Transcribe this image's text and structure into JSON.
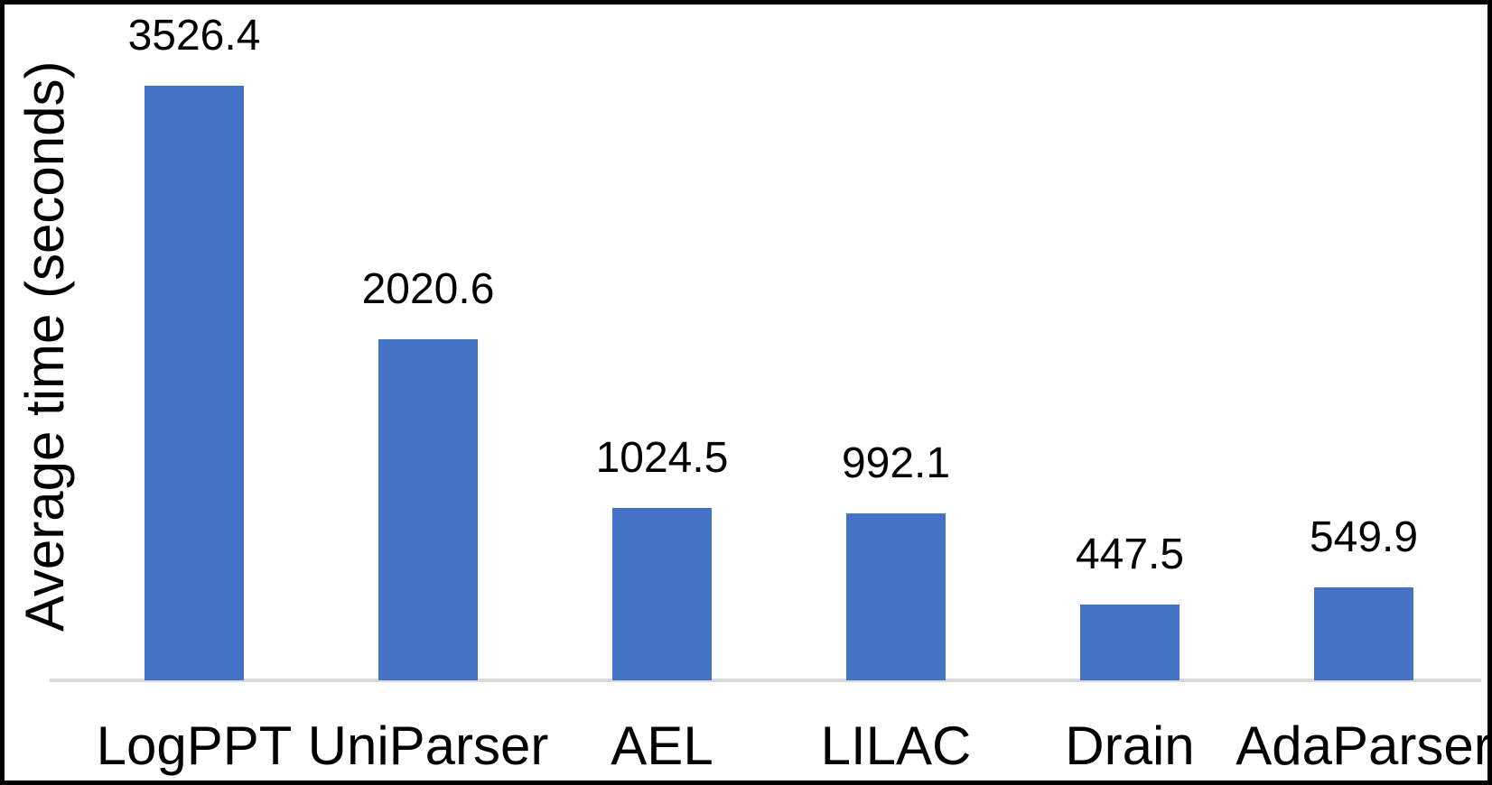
{
  "chart_data": {
    "type": "bar",
    "title": "",
    "xlabel": "",
    "ylabel": "Average time (seconds)",
    "categories": [
      "LogPPT",
      "UniParser",
      "AEL",
      "LILAC",
      "Drain",
      "AdaParser"
    ],
    "values": [
      3526.4,
      2020.6,
      1024.5,
      992.1,
      447.5,
      549.9
    ],
    "value_labels": [
      "3526.4",
      "2020.6",
      "1024.5",
      "992.1",
      "447.5",
      "549.9"
    ],
    "ylim": [
      0,
      3750
    ],
    "grid": false,
    "legend": false,
    "data_labels_position": "above-bars",
    "colors": {
      "bar": "#4472C4",
      "axis_line": "#D9D9D9",
      "text": "#000000",
      "frame_border": "#000000",
      "background": "#FFFFFF"
    }
  }
}
